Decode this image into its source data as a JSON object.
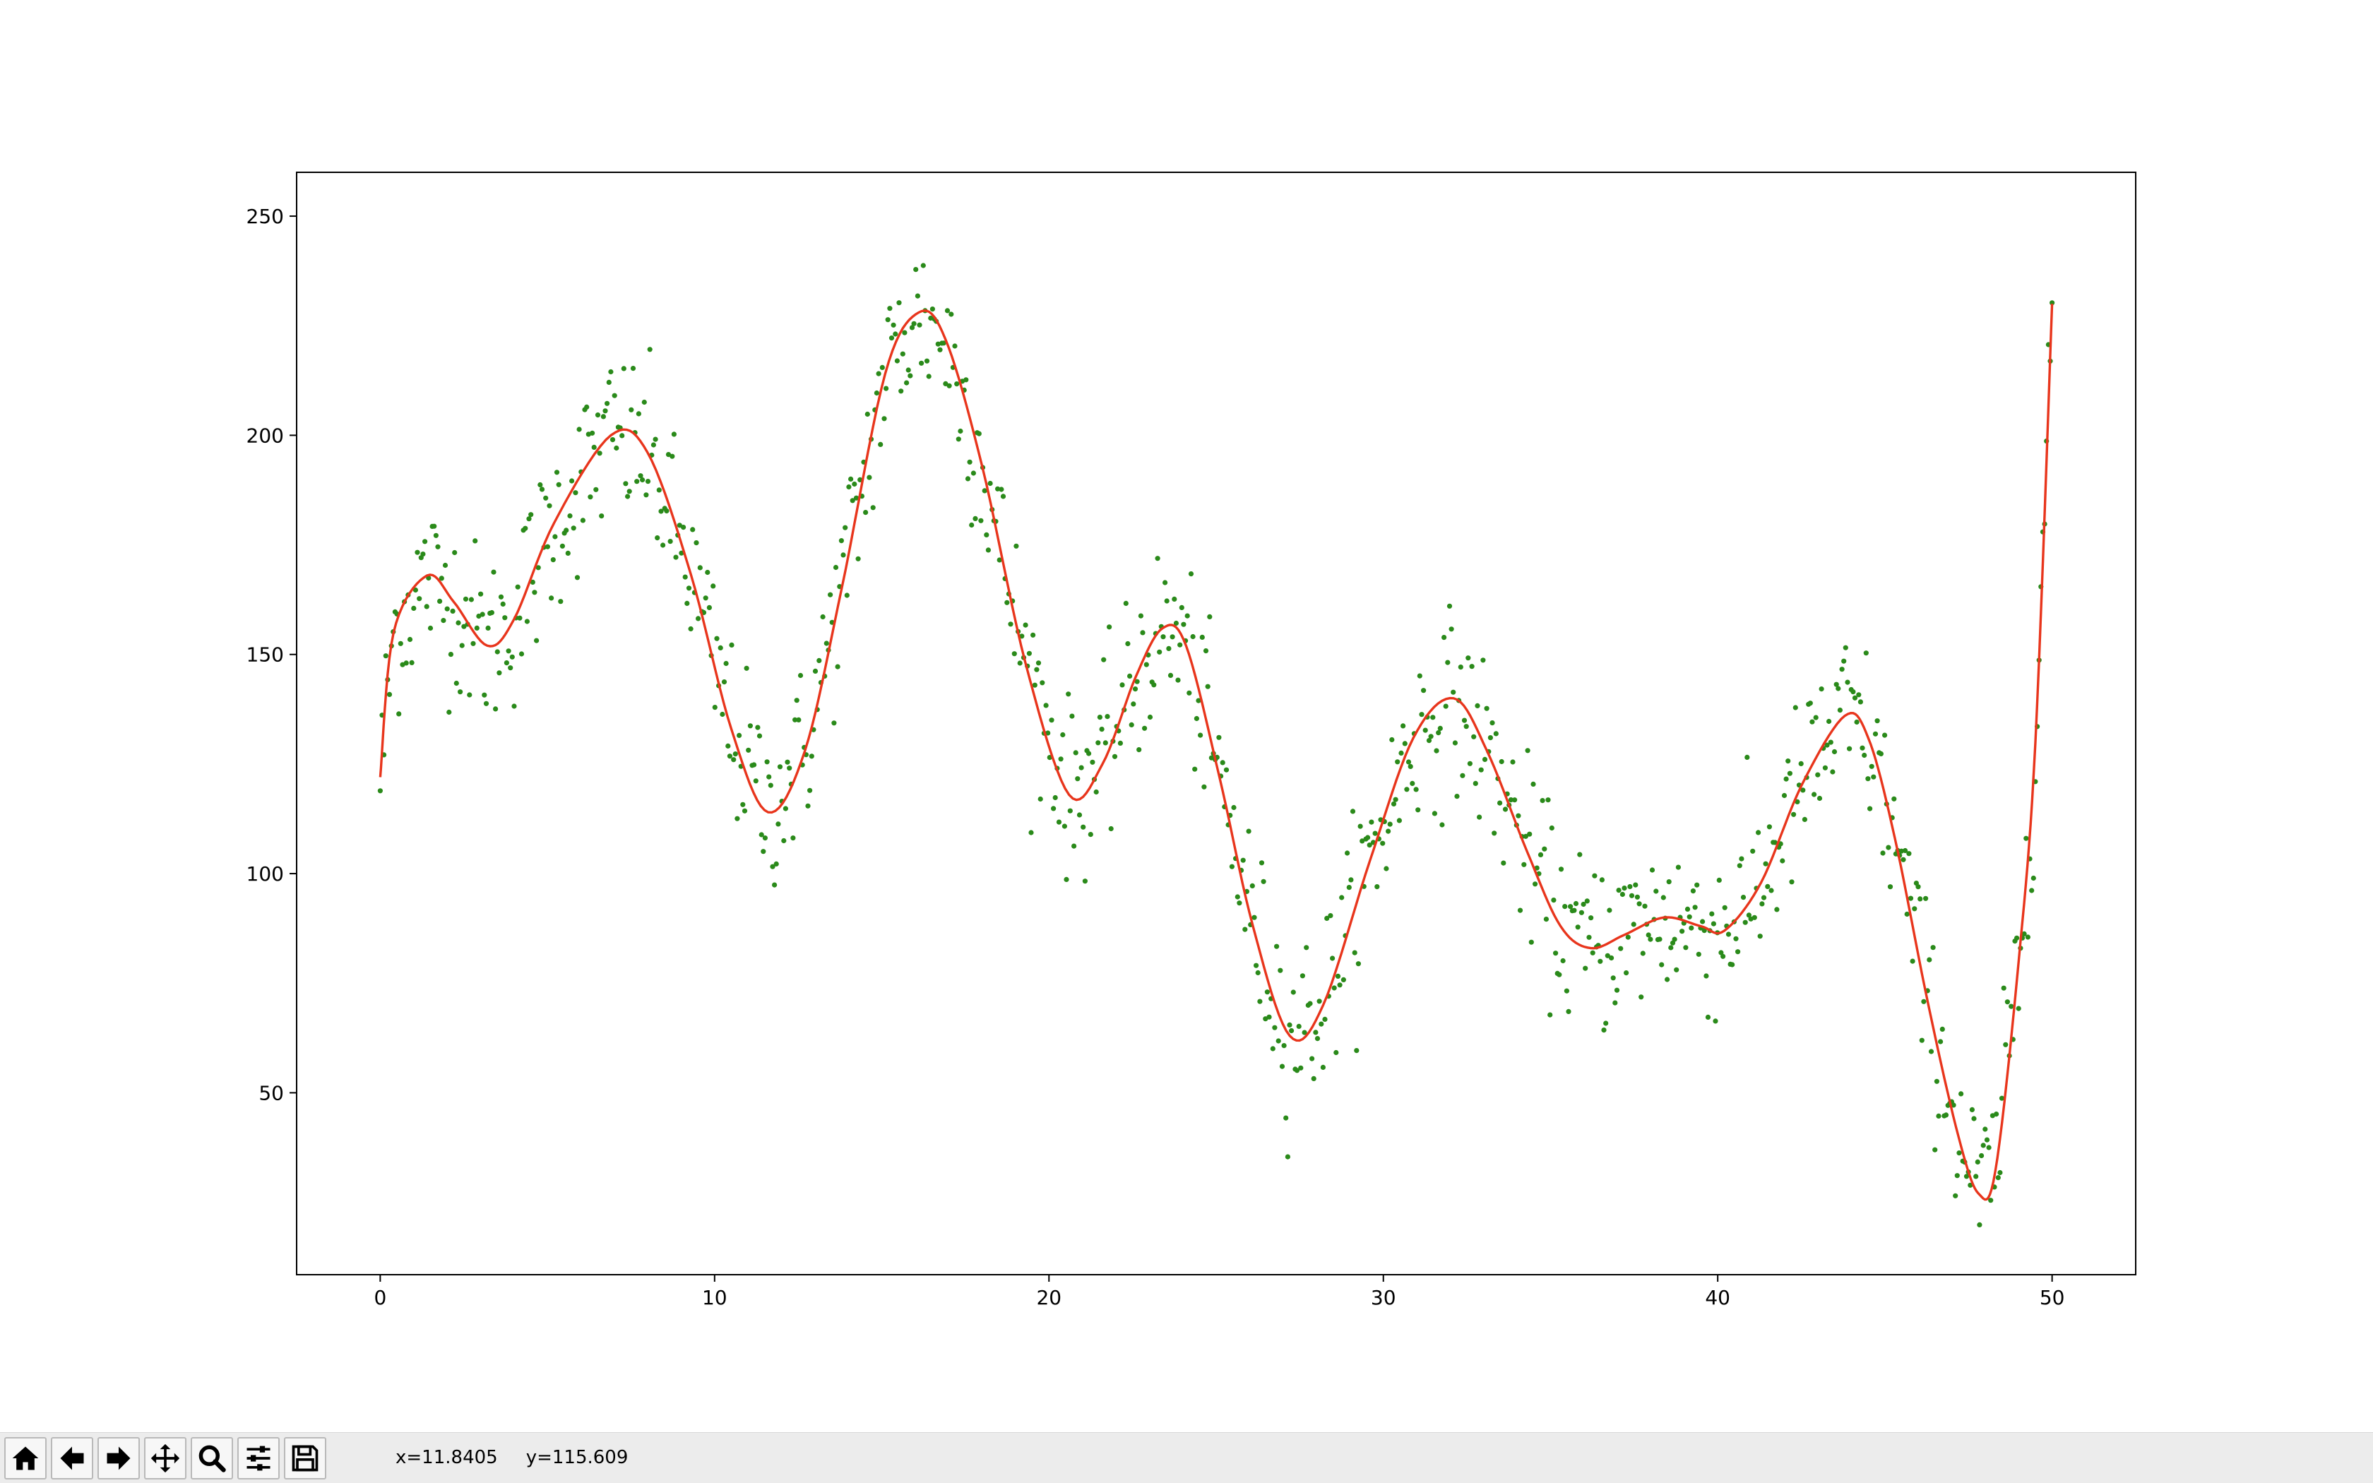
{
  "chart_data": {
    "type": "scatter",
    "xlim": [
      -2.5,
      52.5
    ],
    "ylim": [
      8.5,
      260
    ],
    "x_ticks": [
      0,
      10,
      20,
      30,
      40,
      50
    ],
    "x_tick_labels": [
      "0",
      "10",
      "20",
      "30",
      "40",
      "50"
    ],
    "y_ticks": [
      50,
      100,
      150,
      200,
      250
    ],
    "y_tick_labels": [
      "50",
      "100",
      "150",
      "200",
      "250"
    ],
    "grid": false,
    "legend": "none",
    "colors": {
      "scatter": "#2a8a1a",
      "curve": "#e8351c",
      "axes": "#000000"
    },
    "series": [
      {
        "kind": "scatter",
        "noise_std": 10,
        "point_count": 900,
        "note": "noisy samples around the fitted curve"
      },
      {
        "kind": "line",
        "points": [
          [
            0.0,
            122
          ],
          [
            0.4,
            155
          ],
          [
            1.4,
            168
          ],
          [
            2.2,
            162
          ],
          [
            3.2,
            152
          ],
          [
            4.0,
            158
          ],
          [
            5.2,
            180
          ],
          [
            6.9,
            200
          ],
          [
            8.0,
            196
          ],
          [
            9.3,
            168
          ],
          [
            10.5,
            133
          ],
          [
            11.6,
            114
          ],
          [
            12.7,
            128
          ],
          [
            13.8,
            165
          ],
          [
            15.1,
            214
          ],
          [
            16.1,
            228
          ],
          [
            16.9,
            222
          ],
          [
            18.0,
            193
          ],
          [
            19.3,
            148
          ],
          [
            20.6,
            118
          ],
          [
            21.6,
            125
          ],
          [
            22.6,
            145
          ],
          [
            23.4,
            156
          ],
          [
            24.1,
            152
          ],
          [
            25.1,
            122
          ],
          [
            26.1,
            88
          ],
          [
            27.2,
            63
          ],
          [
            28.2,
            70
          ],
          [
            29.6,
            103
          ],
          [
            30.9,
            131
          ],
          [
            32.1,
            140
          ],
          [
            33.1,
            128
          ],
          [
            34.3,
            105
          ],
          [
            35.3,
            88
          ],
          [
            36.2,
            83
          ],
          [
            37.2,
            86
          ],
          [
            38.4,
            90
          ],
          [
            39.5,
            88
          ],
          [
            40.2,
            87
          ],
          [
            41.3,
            98
          ],
          [
            42.5,
            120
          ],
          [
            43.8,
            136
          ],
          [
            44.5,
            131
          ],
          [
            45.3,
            108
          ],
          [
            46.3,
            70
          ],
          [
            47.2,
            40
          ],
          [
            47.8,
            27
          ],
          [
            48.3,
            32
          ],
          [
            49.0,
            80
          ],
          [
            49.5,
            130
          ],
          [
            50.0,
            230
          ]
        ]
      }
    ]
  },
  "toolbar": {
    "buttons": [
      {
        "name": "home-button",
        "icon": "home-icon"
      },
      {
        "name": "back-button",
        "icon": "arrow-left-icon"
      },
      {
        "name": "forward-button",
        "icon": "arrow-right-icon"
      },
      {
        "name": "pan-button",
        "icon": "move-icon"
      },
      {
        "name": "zoom-button",
        "icon": "magnifier-icon"
      },
      {
        "name": "configure-button",
        "icon": "sliders-icon"
      },
      {
        "name": "save-button",
        "icon": "floppy-disk-icon"
      }
    ],
    "x_readout": "x=11.8405",
    "y_readout": "y=115.609"
  }
}
